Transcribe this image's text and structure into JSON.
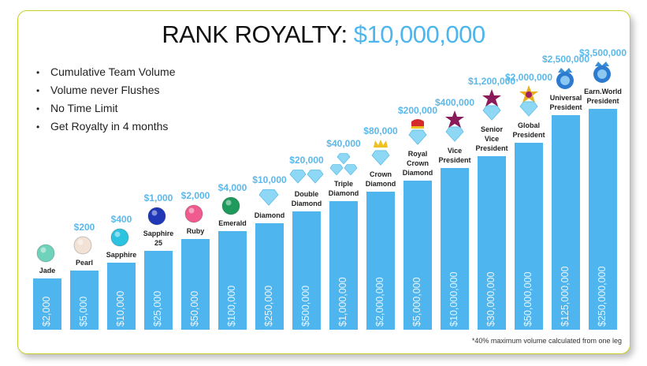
{
  "title": {
    "prefix": "RANK ROYALTY: ",
    "amount": "$10,000,000"
  },
  "bullets": [
    "Cumulative Team Volume",
    "Volume never Flushes",
    "No Time Limit",
    "Get Royalty in 4 months"
  ],
  "footnote": "*40% maximum volume calculated from one leg",
  "colors": {
    "bar": "#4fb5ef",
    "royalty_text": "#5bb8ea",
    "border": "#c6cf2a"
  },
  "chart_data": {
    "type": "bar",
    "categories": [
      "Jade",
      "Pearl",
      "Sapphire",
      "Sapphire 25",
      "Ruby",
      "Emerald",
      "Diamond",
      "Double Diamond",
      "Triple Diamond",
      "Crown Diamond",
      "Royal Crown Diamond",
      "Vice President",
      "Senior Vice President",
      "Global President",
      "Universal President",
      "Earn.World President"
    ],
    "volume_labels": [
      "$2,000",
      "$5,000",
      "$10,000",
      "$25,000",
      "$50,000",
      "$100,000",
      "$250,000",
      "$500,000",
      "$1,000,000",
      "$2,000,000",
      "$5,000,000",
      "$10,000,000",
      "$30,000,000",
      "$50,000,000",
      "$125,000,000",
      "$250,000,000"
    ],
    "volume_values": [
      2000,
      5000,
      10000,
      25000,
      50000,
      100000,
      250000,
      500000,
      1000000,
      2000000,
      5000000,
      10000000,
      30000000,
      50000000,
      125000000,
      250000000
    ],
    "royalty_labels": [
      "",
      "$200",
      "$400",
      "$1,000",
      "$2,000",
      "$4,000",
      "$10,000",
      "$20,000",
      "$40,000",
      "$80,000",
      "$200,000",
      "$400,000",
      "$1,200,000",
      "$2,000,000",
      "$2,500,000",
      "$3,500,000"
    ],
    "icons": [
      "jade-gem",
      "pearl",
      "sapphire-gem",
      "blue-sapphire-gem",
      "ruby-gem",
      "emerald-gem",
      "diamond",
      "double-diamond",
      "triple-diamond",
      "crown-diamond",
      "royal-crown-diamond",
      "star-diamond",
      "star-diamond",
      "gold-star-diamond",
      "blue-medallion",
      "blue-medallion"
    ],
    "xlabel": "",
    "ylabel": "",
    "grid": false,
    "legend": "none",
    "scale": "not to scale (increasing steps)"
  }
}
